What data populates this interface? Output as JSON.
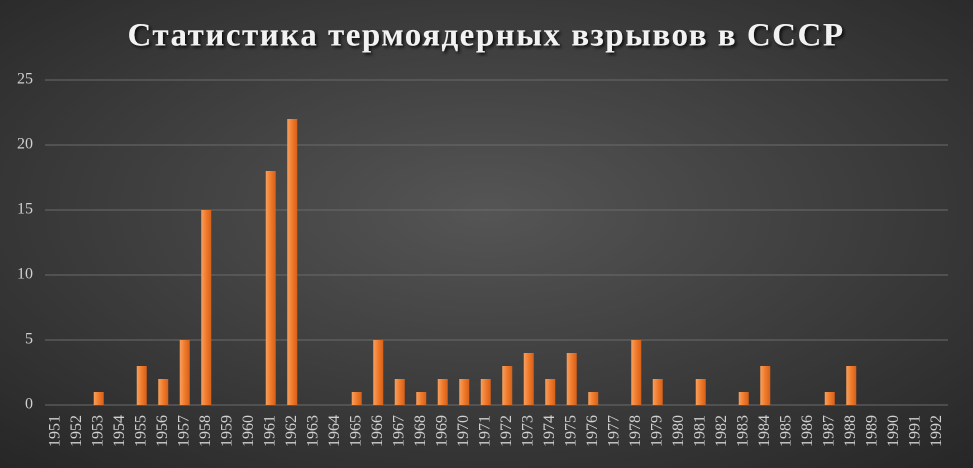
{
  "chart_data": {
    "type": "bar",
    "title": "Статистика термоядерных взрывов в СССР",
    "categories": [
      "1951",
      "1952",
      "1953",
      "1954",
      "1955",
      "1956",
      "1957",
      "1958",
      "1959",
      "1960",
      "1961",
      "1962",
      "1963",
      "1964",
      "1965",
      "1966",
      "1967",
      "1968",
      "1969",
      "1970",
      "1971",
      "1972",
      "1973",
      "1974",
      "1975",
      "1976",
      "1977",
      "1978",
      "1979",
      "1980",
      "1981",
      "1982",
      "1983",
      "1984",
      "1985",
      "1986",
      "1987",
      "1988",
      "1989",
      "1990",
      "1991",
      "1992"
    ],
    "values": [
      0,
      0,
      1,
      0,
      3,
      2,
      5,
      15,
      0,
      0,
      18,
      22,
      0,
      0,
      1,
      5,
      2,
      1,
      2,
      2,
      2,
      3,
      4,
      2,
      4,
      1,
      0,
      5,
      2,
      0,
      2,
      0,
      1,
      3,
      0,
      0,
      1,
      3,
      0,
      0,
      0,
      0
    ],
    "color": "#f0792a",
    "ylim": [
      0,
      25
    ],
    "yticks": [
      0,
      5,
      10,
      15,
      20,
      25
    ],
    "grid": true
  }
}
